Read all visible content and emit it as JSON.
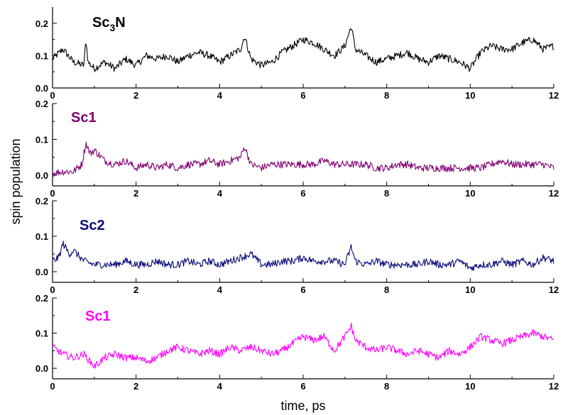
{
  "figure": {
    "ylabel": "spin population",
    "xlabel": "time, ps"
  },
  "chart_data": [
    {
      "type": "line",
      "label": "Sc3N",
      "label_main": "Sc",
      "label_sub": "3",
      "label_tail": "N",
      "color": "#000000",
      "xlim": [
        0,
        12
      ],
      "ylim": [
        0.0,
        0.25
      ],
      "xticks": [
        "0",
        "2",
        "4",
        "6",
        "8",
        "10",
        "12"
      ],
      "yticks": [
        "0.0",
        "0.1",
        "0.2"
      ],
      "series": [
        {
          "x": [
            0,
            0.25,
            0.5,
            0.75,
            0.8,
            0.85,
            1,
            1.25,
            1.5,
            1.75,
            2,
            2.25,
            2.5,
            2.75,
            3,
            3.25,
            3.5,
            3.75,
            4,
            4.25,
            4.5,
            4.6,
            4.75,
            5,
            5.25,
            5.5,
            5.75,
            6,
            6.25,
            6.5,
            6.75,
            7,
            7.15,
            7.25,
            7.5,
            7.75,
            8,
            8.25,
            8.5,
            8.75,
            9,
            9.25,
            9.5,
            9.75,
            10,
            10.25,
            10.5,
            10.75,
            11,
            11.25,
            11.5,
            11.75,
            12
          ],
          "y": [
            0.09,
            0.12,
            0.08,
            0.07,
            0.15,
            0.08,
            0.06,
            0.08,
            0.06,
            0.09,
            0.07,
            0.1,
            0.09,
            0.1,
            0.08,
            0.1,
            0.11,
            0.1,
            0.08,
            0.1,
            0.12,
            0.16,
            0.09,
            0.07,
            0.08,
            0.11,
            0.13,
            0.15,
            0.14,
            0.12,
            0.1,
            0.13,
            0.19,
            0.12,
            0.1,
            0.08,
            0.09,
            0.1,
            0.11,
            0.09,
            0.08,
            0.1,
            0.09,
            0.08,
            0.06,
            0.11,
            0.13,
            0.12,
            0.12,
            0.14,
            0.15,
            0.12,
            0.13
          ]
        }
      ]
    },
    {
      "type": "line",
      "label": "Sc1",
      "label_main": "Sc1",
      "label_sub": "",
      "label_tail": "",
      "color": "#800070",
      "xlim": [
        0,
        12
      ],
      "ylim": [
        -0.03,
        0.2
      ],
      "xticks": [
        "0",
        "2",
        "4",
        "6",
        "8",
        "10",
        "12"
      ],
      "yticks": [
        "0.0",
        "0.1",
        "0.2"
      ],
      "series": [
        {
          "x": [
            0,
            0.25,
            0.5,
            0.7,
            0.8,
            0.9,
            1,
            1.25,
            1.5,
            1.75,
            2,
            2.25,
            2.5,
            2.75,
            3,
            3.25,
            3.5,
            3.75,
            4,
            4.25,
            4.5,
            4.6,
            4.75,
            5,
            5.25,
            5.5,
            5.75,
            6,
            6.25,
            6.5,
            6.75,
            7,
            7.25,
            7.5,
            7.75,
            8,
            8.25,
            8.5,
            8.75,
            9,
            9.25,
            9.5,
            9.75,
            10,
            10.25,
            10.5,
            10.75,
            11,
            11.25,
            11.5,
            11.75,
            12
          ],
          "y": [
            0.005,
            0.01,
            0.01,
            0.03,
            0.09,
            0.06,
            0.07,
            0.04,
            0.03,
            0.04,
            0.02,
            0.03,
            0.02,
            0.03,
            0.02,
            0.03,
            0.03,
            0.04,
            0.03,
            0.04,
            0.05,
            0.08,
            0.03,
            0.02,
            0.03,
            0.03,
            0.03,
            0.03,
            0.03,
            0.04,
            0.03,
            0.03,
            0.03,
            0.03,
            0.02,
            0.02,
            0.03,
            0.03,
            0.02,
            0.02,
            0.02,
            0.02,
            0.02,
            0.02,
            0.02,
            0.03,
            0.04,
            0.03,
            0.03,
            0.03,
            0.03,
            0.02
          ]
        }
      ]
    },
    {
      "type": "line",
      "label": "Sc2",
      "label_main": "Sc2",
      "label_sub": "",
      "label_tail": "",
      "color": "#0a0a78",
      "xlim": [
        0,
        12
      ],
      "ylim": [
        -0.03,
        0.2
      ],
      "xticks": [
        "0",
        "2",
        "4",
        "6",
        "8",
        "10",
        "12"
      ],
      "yticks": [
        "0.0",
        "0.1",
        "0.2"
      ],
      "series": [
        {
          "x": [
            0,
            0.15,
            0.25,
            0.4,
            0.5,
            0.75,
            1,
            1.25,
            1.5,
            1.75,
            2,
            2.25,
            2.5,
            2.75,
            3,
            3.25,
            3.5,
            3.75,
            4,
            4.25,
            4.5,
            4.75,
            5,
            5.25,
            5.5,
            5.75,
            6,
            6.25,
            6.5,
            6.75,
            7,
            7.15,
            7.25,
            7.5,
            7.75,
            8,
            8.25,
            8.5,
            8.75,
            9,
            9.25,
            9.5,
            9.75,
            10,
            10.25,
            10.5,
            10.75,
            11,
            11.25,
            11.5,
            11.75,
            12
          ],
          "y": [
            0.03,
            0.04,
            0.08,
            0.05,
            0.06,
            0.03,
            0.02,
            0.02,
            0.02,
            0.03,
            0.02,
            0.02,
            0.03,
            0.02,
            0.02,
            0.03,
            0.02,
            0.03,
            0.02,
            0.03,
            0.04,
            0.05,
            0.02,
            0.02,
            0.03,
            0.03,
            0.04,
            0.03,
            0.03,
            0.03,
            0.02,
            0.07,
            0.03,
            0.02,
            0.03,
            0.02,
            0.02,
            0.02,
            0.02,
            0.03,
            0.02,
            0.02,
            0.03,
            0.01,
            0.02,
            0.02,
            0.03,
            0.02,
            0.03,
            0.02,
            0.04,
            0.03
          ]
        }
      ]
    },
    {
      "type": "line",
      "label": "Sc1",
      "label_main": "Sc1",
      "label_sub": "",
      "label_tail": "",
      "color": "#ff00ff",
      "xlim": [
        0,
        12
      ],
      "ylim": [
        -0.03,
        0.2
      ],
      "xticks": [
        "0",
        "2",
        "4",
        "6",
        "8",
        "10",
        "12"
      ],
      "yticks": [
        "0.0",
        "0.1",
        "0.2"
      ],
      "series": [
        {
          "x": [
            0,
            0.25,
            0.5,
            0.75,
            1,
            1.25,
            1.5,
            1.75,
            2,
            2.25,
            2.5,
            2.75,
            3,
            3.25,
            3.5,
            3.75,
            4,
            4.25,
            4.5,
            4.75,
            5,
            5.25,
            5.5,
            5.75,
            6,
            6.25,
            6.5,
            6.75,
            7,
            7.15,
            7.25,
            7.5,
            7.75,
            8,
            8.25,
            8.5,
            8.75,
            9,
            9.25,
            9.5,
            9.75,
            10,
            10.25,
            10.5,
            10.75,
            11,
            11.25,
            11.5,
            11.75,
            12
          ],
          "y": [
            0.06,
            0.04,
            0.03,
            0.04,
            0.005,
            0.03,
            0.04,
            0.03,
            0.03,
            0.02,
            0.03,
            0.05,
            0.06,
            0.05,
            0.04,
            0.05,
            0.04,
            0.06,
            0.05,
            0.06,
            0.05,
            0.04,
            0.05,
            0.07,
            0.09,
            0.08,
            0.09,
            0.05,
            0.09,
            0.12,
            0.08,
            0.06,
            0.05,
            0.06,
            0.05,
            0.04,
            0.05,
            0.04,
            0.03,
            0.05,
            0.04,
            0.06,
            0.09,
            0.08,
            0.07,
            0.08,
            0.09,
            0.1,
            0.09,
            0.08
          ]
        }
      ]
    }
  ]
}
